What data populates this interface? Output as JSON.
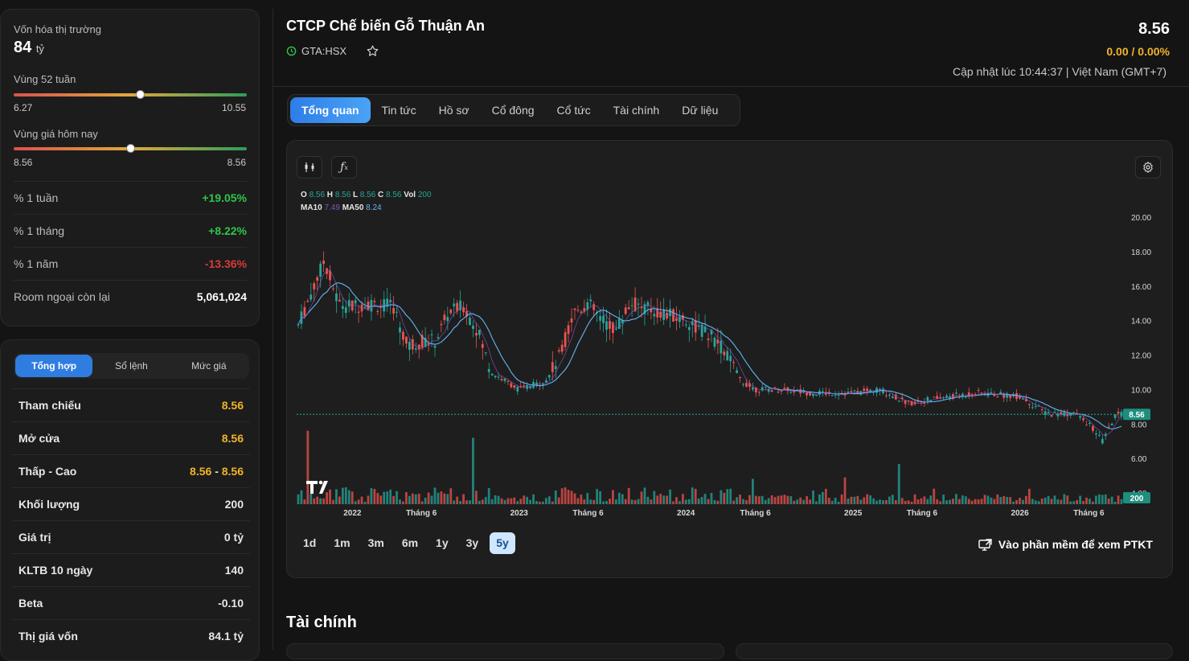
{
  "market_cap": {
    "label": "Vốn hóa thị trường",
    "value": "84",
    "unit": "tỷ"
  },
  "range_52w": {
    "label": "Vùng 52 tuần",
    "low": "6.27",
    "high": "10.55",
    "position": 0.54
  },
  "range_today": {
    "label": "Vùng giá hôm nay",
    "low": "8.56",
    "high": "8.56",
    "position": 0.5
  },
  "perf": [
    {
      "label": "% 1 tuần",
      "value": "+19.05%",
      "tone": "green"
    },
    {
      "label": "% 1 tháng",
      "value": "+8.22%",
      "tone": "green"
    },
    {
      "label": "% 1 năm",
      "value": "-13.36%",
      "tone": "red"
    },
    {
      "label": "Room ngoại còn lại",
      "value": "5,061,024",
      "tone": "white"
    }
  ],
  "order_tabs": [
    "Tổng hợp",
    "Sổ lệnh",
    "Mức giá"
  ],
  "summary": [
    {
      "label": "Tham chiếu",
      "value": "8.56",
      "tone": "yellow"
    },
    {
      "label": "Mở cửa",
      "value": "8.56",
      "tone": "yellow"
    },
    {
      "label": "Thấp - Cao",
      "low": "8.56",
      "sep": "-",
      "high": "8.56",
      "tone": "yellow"
    },
    {
      "label": "Khối lượng",
      "value": "200",
      "tone": "white"
    },
    {
      "label": "Giá trị",
      "value": "0 tỷ",
      "tone": "white"
    },
    {
      "label": "KLTB 10 ngày",
      "value": "140",
      "tone": "white"
    },
    {
      "label": "Beta",
      "value": "-0.10",
      "tone": "white"
    },
    {
      "label": "Thị giá vốn",
      "value": "84.1 tỷ",
      "tone": "white"
    }
  ],
  "header": {
    "title": "CTCP Chế biến Gỗ Thuận An",
    "ticker": "GTA:HSX",
    "price": "8.56",
    "change": "0.00 / 0.00%",
    "updated": "Cập nhật lúc 10:44:37 | Việt Nam (GMT+7)"
  },
  "main_tabs": [
    "Tổng quan",
    "Tin tức",
    "Hồ sơ",
    "Cổ đông",
    "Cổ tức",
    "Tài chính",
    "Dữ liệu"
  ],
  "ohlc": {
    "O": "8.56",
    "H": "8.56",
    "L": "8.56",
    "C": "8.56",
    "Vol": "200",
    "MA10": "7.49",
    "MA50": "8.24"
  },
  "range_buttons": [
    "1d",
    "1m",
    "3m",
    "6m",
    "1y",
    "3y",
    "5y"
  ],
  "active_range": "5y",
  "ptkt_label": "Vào phần mềm để xem PTKT",
  "section_title": "Tài chính",
  "colors": {
    "up": "#26a69a",
    "down": "#ef5350",
    "ma10": "#7e57c2",
    "ma50": "#64b5f6",
    "accent": "#2f7de1",
    "yellow": "#f0b429"
  },
  "chart_data": {
    "type": "candlestick",
    "y_ticks": [
      "20.00",
      "18.00",
      "16.00",
      "14.00",
      "12.00",
      "10.00",
      "8.00",
      "6.00",
      "4.00"
    ],
    "ylim": [
      4,
      20
    ],
    "x_labels": [
      "2022",
      "Tháng 6",
      "2023",
      "Tháng 6",
      "2024",
      "Tháng 6",
      "2025",
      "Tháng 6",
      "2026",
      "Tháng 6"
    ],
    "last_price": "8.56",
    "last_volume": "200",
    "close_series": [
      {
        "date": "2021-09",
        "value": 13.5
      },
      {
        "date": "2021-11",
        "value": 17.5
      },
      {
        "date": "2021-12",
        "value": 15.0
      },
      {
        "date": "2022-01",
        "value": 14.8
      },
      {
        "date": "2022-02",
        "value": 15.0
      },
      {
        "date": "2022-04",
        "value": 14.8
      },
      {
        "date": "2022-05",
        "value": 12.5
      },
      {
        "date": "2022-06",
        "value": 12.8
      },
      {
        "date": "2022-07",
        "value": 12.8
      },
      {
        "date": "2022-08",
        "value": 14.5
      },
      {
        "date": "2022-09",
        "value": 14.8
      },
      {
        "date": "2022-10",
        "value": 13.5
      },
      {
        "date": "2022-11",
        "value": 11.0
      },
      {
        "date": "2022-12",
        "value": 10.5
      },
      {
        "date": "2023-01",
        "value": 10.0
      },
      {
        "date": "2023-03",
        "value": 10.5
      },
      {
        "date": "2023-04",
        "value": 12.0
      },
      {
        "date": "2023-05",
        "value": 14.5
      },
      {
        "date": "2023-06",
        "value": 15.0
      },
      {
        "date": "2023-07",
        "value": 14.0
      },
      {
        "date": "2023-08",
        "value": 13.5
      },
      {
        "date": "2023-09",
        "value": 15.0
      },
      {
        "date": "2023-11",
        "value": 14.5
      },
      {
        "date": "2024-01",
        "value": 14.0
      },
      {
        "date": "2024-03",
        "value": 13.0
      },
      {
        "date": "2024-04",
        "value": 12.0
      },
      {
        "date": "2024-05",
        "value": 10.5
      },
      {
        "date": "2024-06",
        "value": 10.0
      },
      {
        "date": "2024-08",
        "value": 10.0
      },
      {
        "date": "2024-10",
        "value": 9.8
      },
      {
        "date": "2025-01",
        "value": 9.8
      },
      {
        "date": "2025-03",
        "value": 10.0
      },
      {
        "date": "2025-05",
        "value": 9.2
      },
      {
        "date": "2025-08",
        "value": 9.6
      },
      {
        "date": "2025-10",
        "value": 9.8
      },
      {
        "date": "2026-01",
        "value": 9.6
      },
      {
        "date": "2026-03",
        "value": 8.6
      },
      {
        "date": "2026-05",
        "value": 8.6
      },
      {
        "date": "2026-06",
        "value": 8.0
      },
      {
        "date": "2026-07",
        "value": 7.0
      },
      {
        "date": "2026-08",
        "value": 8.56
      }
    ]
  }
}
